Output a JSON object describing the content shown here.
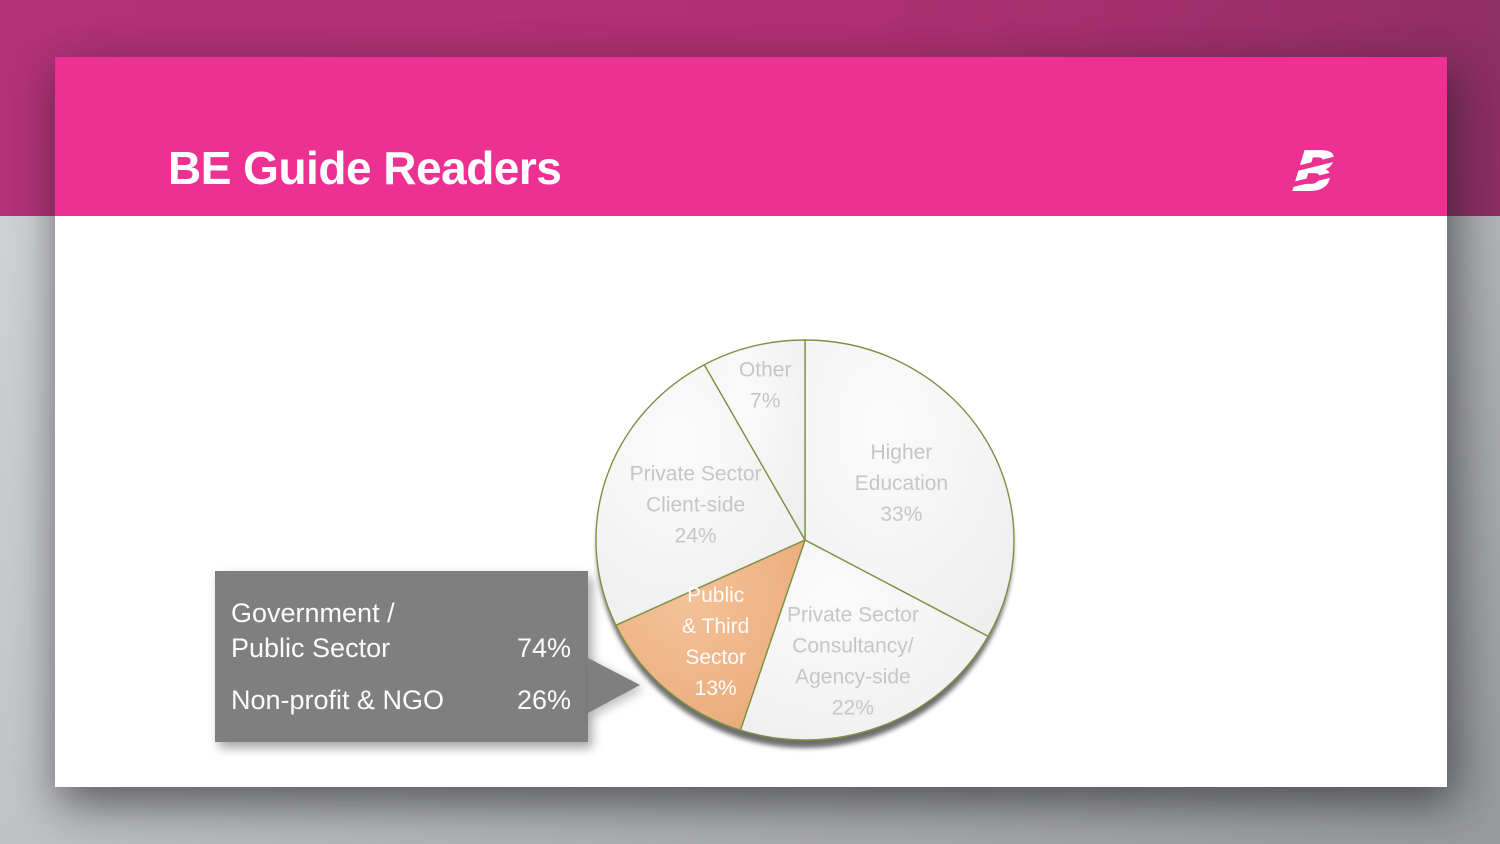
{
  "header": {
    "title": "BE Guide Readers",
    "accent_color": "#ED3193",
    "band_color": "#B23178",
    "logo_letter": "B"
  },
  "chart_data": {
    "type": "pie",
    "title": "BE Guide Readers",
    "unit": "%",
    "categories": [
      "Higher Education",
      "Private Sector Consultancy/Agency-side",
      "Public & Third Sector",
      "Private Sector Client-side",
      "Other"
    ],
    "values": [
      33,
      22,
      13,
      24,
      7
    ],
    "label_lines": [
      [
        "Higher",
        "Education",
        "33%"
      ],
      [
        "Private Sector",
        "Consultancy/",
        "Agency-side",
        "22%"
      ],
      [
        "Public",
        "& Third",
        "Sector",
        "13%"
      ],
      [
        "Private Sector",
        "Client-side",
        "24%"
      ],
      [
        "Other",
        "7%"
      ]
    ],
    "highlighted_category": "Public & Third Sector",
    "legend": "none",
    "start_angle_deg": 0,
    "direction": "clockwise",
    "colors": {
      "slice_fill_inner": "#FBFBFB",
      "slice_fill_outer": "#EEEEEE",
      "highlight_fill_inner": "#F4C299",
      "highlight_fill_outer": "#E9A978",
      "border": "#7E9144",
      "label": "#C5C6C8",
      "highlight_label": "#FDFDFD",
      "shadow": "#5E5E5E"
    }
  },
  "callout": {
    "background": "#7F7F7F",
    "text_color": "#FBFBFB",
    "rows": [
      {
        "label_lines": [
          "Government /",
          "Public Sector"
        ],
        "value": "74%"
      },
      {
        "label_lines": [
          "Non-profit & NGO"
        ],
        "value": "26%"
      }
    ]
  }
}
